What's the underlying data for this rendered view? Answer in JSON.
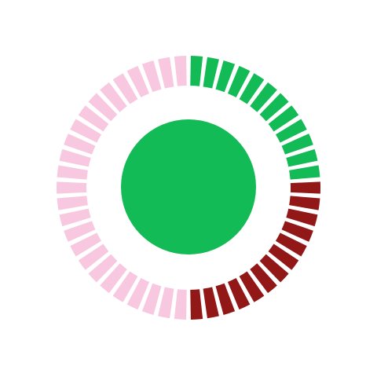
{
  "dial": {
    "segment_count": 50,
    "segments": {
      "green": {
        "count": 12,
        "color": "#12bb55"
      },
      "red": {
        "count": 13,
        "color": "#921717"
      },
      "pink": {
        "count": 25,
        "color": "#f8c8e0"
      }
    },
    "order_clockwise_from_top": [
      "green",
      "red",
      "pink"
    ],
    "center_circle_color": "#12bb55"
  }
}
